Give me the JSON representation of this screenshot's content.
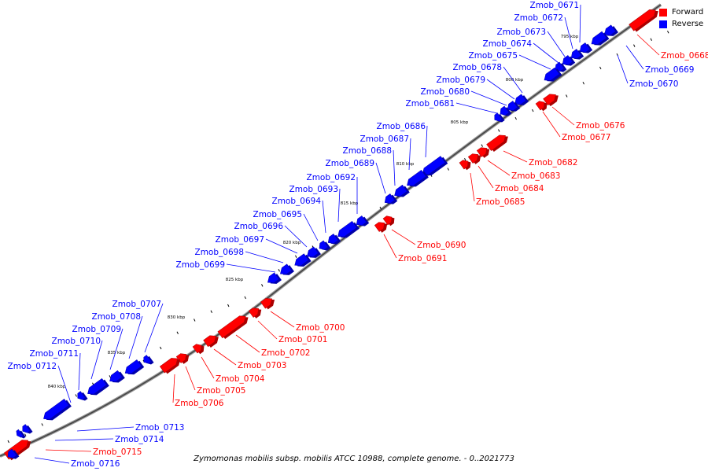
{
  "legend": {
    "forward": {
      "label": "Forward",
      "color": "#ff0000"
    },
    "reverse": {
      "label": "Reverse",
      "color": "#0000ff"
    }
  },
  "caption": "Zymomonas mobilis subsp. mobilis ATCC 10988, complete genome. - 0..2021773",
  "ticks": [
    "795 kbp",
    "800 kbp",
    "805 kbp",
    "810 kbp",
    "815 kbp",
    "820 kbp",
    "825 kbp",
    "830 kbp",
    "835 kbp",
    "840 kbp"
  ],
  "genes": [
    {
      "name": "Zmob_0668",
      "strand": "forward"
    },
    {
      "name": "Zmob_0669",
      "strand": "reverse"
    },
    {
      "name": "Zmob_0670",
      "strand": "reverse"
    },
    {
      "name": "Zmob_0671",
      "strand": "reverse"
    },
    {
      "name": "Zmob_0672",
      "strand": "reverse"
    },
    {
      "name": "Zmob_0673",
      "strand": "reverse"
    },
    {
      "name": "Zmob_0674",
      "strand": "reverse"
    },
    {
      "name": "Zmob_0675",
      "strand": "reverse"
    },
    {
      "name": "Zmob_0676",
      "strand": "forward"
    },
    {
      "name": "Zmob_0677",
      "strand": "forward"
    },
    {
      "name": "Zmob_0678",
      "strand": "reverse"
    },
    {
      "name": "Zmob_0679",
      "strand": "reverse"
    },
    {
      "name": "Zmob_0680",
      "strand": "reverse"
    },
    {
      "name": "Zmob_0681",
      "strand": "reverse"
    },
    {
      "name": "Zmob_0682",
      "strand": "forward"
    },
    {
      "name": "Zmob_0683",
      "strand": "forward"
    },
    {
      "name": "Zmob_0684",
      "strand": "forward"
    },
    {
      "name": "Zmob_0685",
      "strand": "forward"
    },
    {
      "name": "Zmob_0686",
      "strand": "reverse"
    },
    {
      "name": "Zmob_0687",
      "strand": "reverse"
    },
    {
      "name": "Zmob_0688",
      "strand": "reverse"
    },
    {
      "name": "Zmob_0689",
      "strand": "reverse"
    },
    {
      "name": "Zmob_0690",
      "strand": "forward"
    },
    {
      "name": "Zmob_0691",
      "strand": "forward"
    },
    {
      "name": "Zmob_0692",
      "strand": "reverse"
    },
    {
      "name": "Zmob_0693",
      "strand": "reverse"
    },
    {
      "name": "Zmob_0694",
      "strand": "reverse"
    },
    {
      "name": "Zmob_0695",
      "strand": "reverse"
    },
    {
      "name": "Zmob_0696",
      "strand": "reverse"
    },
    {
      "name": "Zmob_0697",
      "strand": "reverse"
    },
    {
      "name": "Zmob_0698",
      "strand": "reverse"
    },
    {
      "name": "Zmob_0699",
      "strand": "reverse"
    },
    {
      "name": "Zmob_0700",
      "strand": "forward"
    },
    {
      "name": "Zmob_0701",
      "strand": "forward"
    },
    {
      "name": "Zmob_0702",
      "strand": "forward"
    },
    {
      "name": "Zmob_0703",
      "strand": "forward"
    },
    {
      "name": "Zmob_0704",
      "strand": "forward"
    },
    {
      "name": "Zmob_0705",
      "strand": "forward"
    },
    {
      "name": "Zmob_0706",
      "strand": "forward"
    },
    {
      "name": "Zmob_0707",
      "strand": "reverse"
    },
    {
      "name": "Zmob_0708",
      "strand": "reverse"
    },
    {
      "name": "Zmob_0709",
      "strand": "reverse"
    },
    {
      "name": "Zmob_0710",
      "strand": "reverse"
    },
    {
      "name": "Zmob_0711",
      "strand": "reverse"
    },
    {
      "name": "Zmob_0712",
      "strand": "reverse"
    },
    {
      "name": "Zmob_0713",
      "strand": "reverse"
    },
    {
      "name": "Zmob_0714",
      "strand": "reverse"
    },
    {
      "name": "Zmob_0715",
      "strand": "forward"
    },
    {
      "name": "Zmob_0716",
      "strand": "reverse"
    }
  ]
}
